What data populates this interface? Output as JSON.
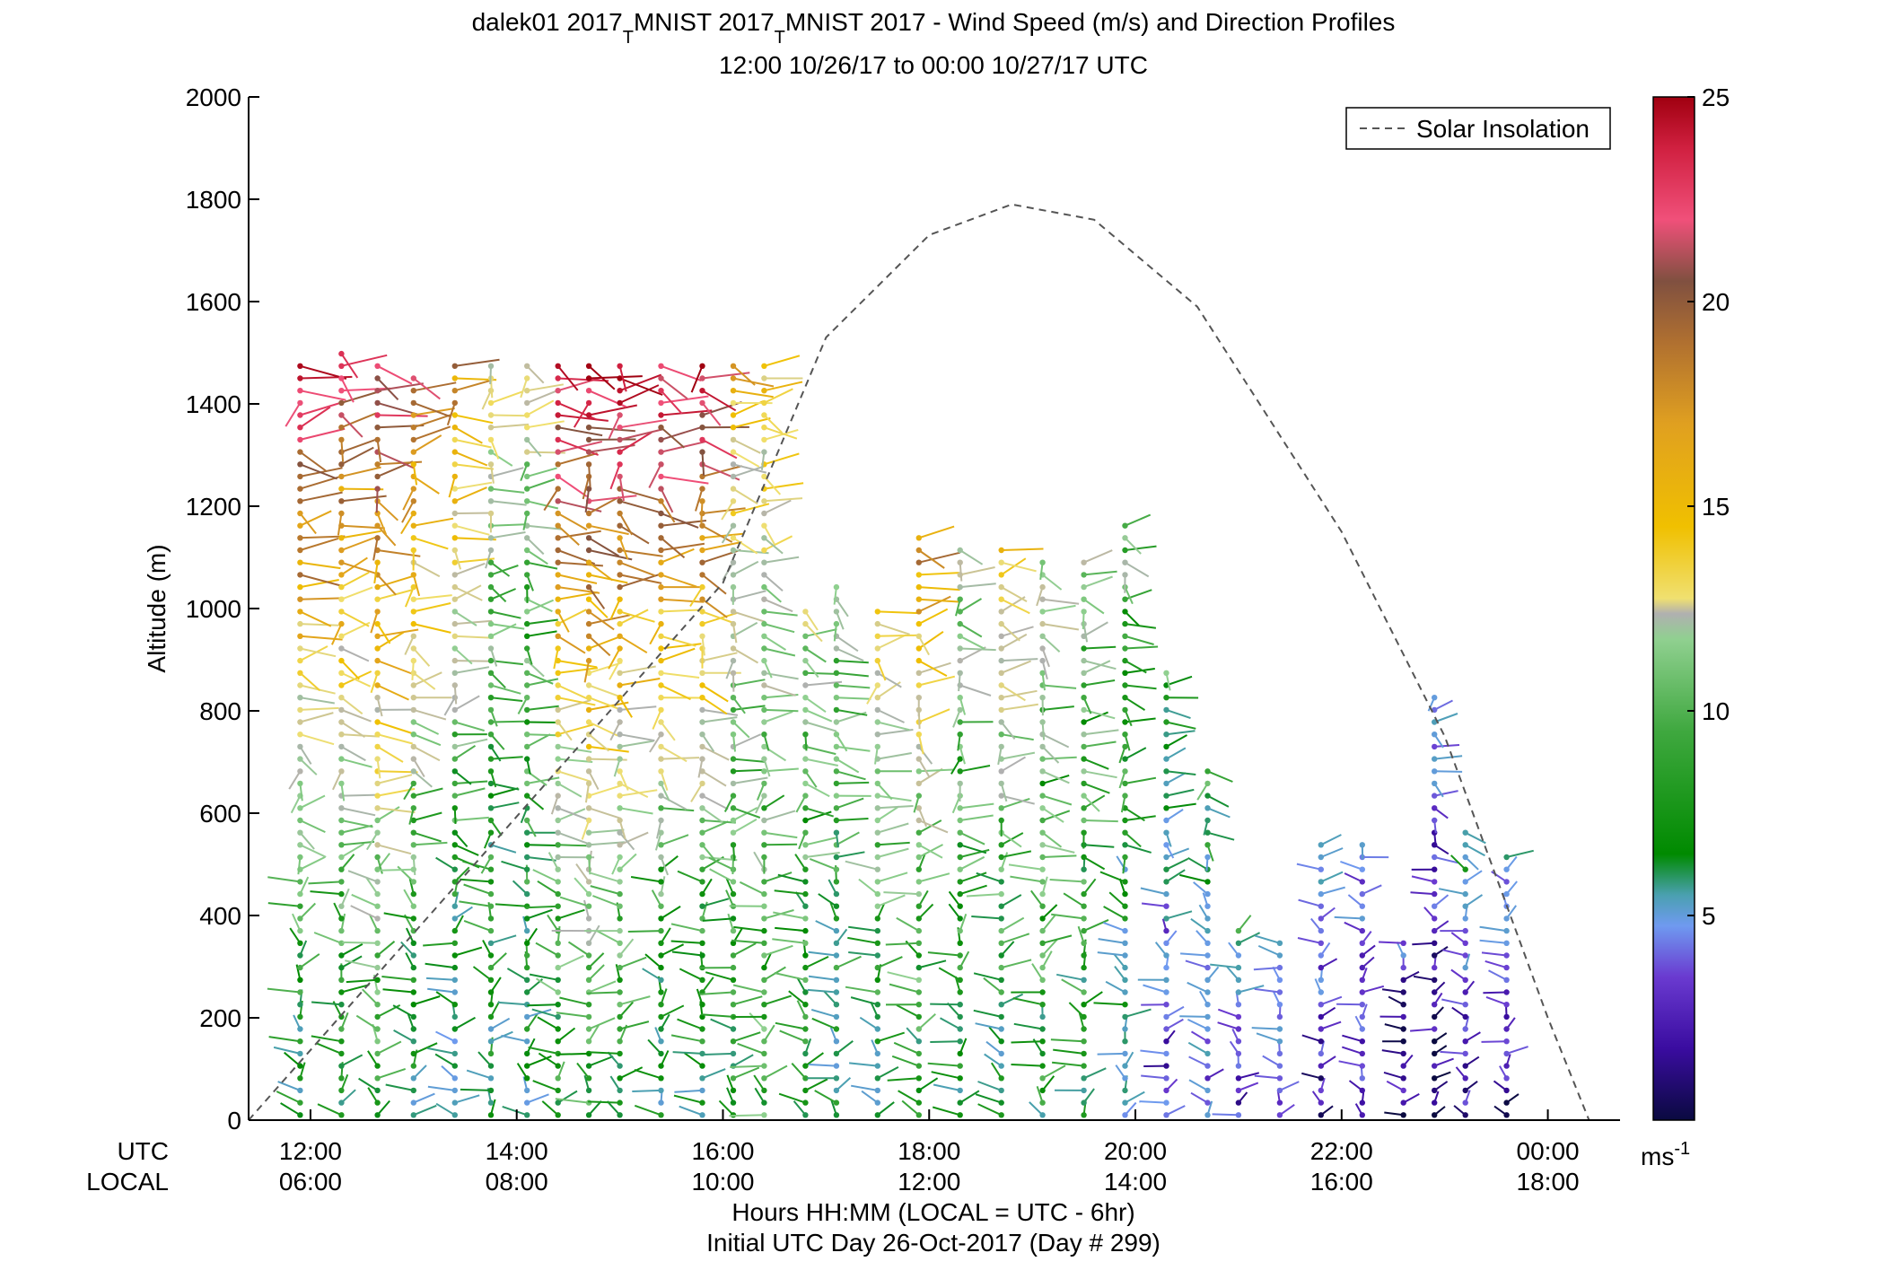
{
  "chart_data": {
    "type": "scatter",
    "title_line1_prefix": "dalek01 2017",
    "title_sub1": "T",
    "title_mid": "MNIST 2017",
    "title_sub2": "T",
    "title_suffix": "MNIST 2017 - Wind Speed (m/s) and Direction Profiles",
    "subtitle": "12:00 10/26/17 to 00:00 10/27/17  UTC",
    "ylabel": "Altitude (m)",
    "xlabel_line1": "Hours HH:MM  (LOCAL = UTC - 6hr)",
    "xlabel_line2": "Initial UTC Day 26-Oct-2017 (Day # 299)",
    "x_row_labels": [
      "UTC",
      "LOCAL"
    ],
    "ylim": [
      0,
      2000
    ],
    "y_ticks": [
      "0",
      "200",
      "400",
      "600",
      "800",
      "1000",
      "1200",
      "1400",
      "1600",
      "1800",
      "2000"
    ],
    "xlim_hours": [
      11.4,
      24.7
    ],
    "x_ticks_hours": [
      12,
      14,
      16,
      18,
      20,
      22,
      24
    ],
    "x_ticks_utc": [
      "12:00",
      "14:00",
      "16:00",
      "18:00",
      "20:00",
      "22:00",
      "00:00"
    ],
    "x_ticks_local": [
      "06:00",
      "08:00",
      "10:00",
      "12:00",
      "14:00",
      "16:00",
      "18:00"
    ],
    "legend": {
      "label": "Solar Insolation",
      "position": "top-right"
    },
    "colorbar": {
      "range": [
        0,
        25
      ],
      "ticks": [
        "5",
        "10",
        "15",
        "20",
        "25"
      ],
      "unit_base": "ms",
      "unit_exp": "-1",
      "colors": [
        "#0a0a40",
        "#3a0ca0",
        "#6a3ad0",
        "#6f9af0",
        "#4aa0b0",
        "#008a00",
        "#3fa83f",
        "#90d090",
        "#b0b0b0",
        "#f0e070",
        "#f0c000",
        "#e0a020",
        "#b07030",
        "#805040",
        "#f0507a",
        "#d02040",
        "#a00010"
      ]
    },
    "solar_insolation_curve": {
      "x": [
        11.4,
        16.0,
        17.0,
        18.0,
        18.8,
        19.6,
        20.6,
        22.0,
        23.0,
        24.0,
        24.4
      ],
      "y": [
        0,
        1050,
        1530,
        1730,
        1790,
        1760,
        1590,
        1150,
        750,
        200,
        0
      ]
    },
    "profiles": [
      {
        "t": 11.9,
        "top": 1480,
        "speed_lo": 7,
        "speed_hi": 24
      },
      {
        "t": 12.3,
        "top": 1510,
        "speed_lo": 8,
        "speed_hi": 22
      },
      {
        "t": 12.65,
        "top": 1490,
        "speed_lo": 9,
        "speed_hi": 23
      },
      {
        "t": 13.0,
        "top": 1450,
        "speed_lo": 7,
        "speed_hi": 20
      },
      {
        "t": 13.4,
        "top": 1480,
        "speed_lo": 6,
        "speed_hi": 18
      },
      {
        "t": 13.75,
        "top": 1490,
        "speed_lo": 7,
        "speed_hi": 14
      },
      {
        "t": 14.1,
        "top": 1490,
        "speed_lo": 7,
        "speed_hi": 13
      },
      {
        "t": 14.4,
        "top": 1490,
        "speed_lo": 8,
        "speed_hi": 24
      },
      {
        "t": 14.7,
        "top": 1480,
        "speed_lo": 9,
        "speed_hi": 24
      },
      {
        "t": 15.0,
        "top": 1490,
        "speed_lo": 8,
        "speed_hi": 25
      },
      {
        "t": 15.4,
        "top": 1490,
        "speed_lo": 7,
        "speed_hi": 24
      },
      {
        "t": 15.8,
        "top": 1490,
        "speed_lo": 7,
        "speed_hi": 24
      },
      {
        "t": 16.1,
        "top": 1490,
        "speed_lo": 8,
        "speed_hi": 16
      },
      {
        "t": 16.4,
        "top": 1490,
        "speed_lo": 9,
        "speed_hi": 15
      },
      {
        "t": 16.8,
        "top": 1000,
        "speed_lo": 8,
        "speed_hi": 12
      },
      {
        "t": 17.1,
        "top": 1060,
        "speed_lo": 7,
        "speed_hi": 12
      },
      {
        "t": 17.5,
        "top": 1010,
        "speed_lo": 7,
        "speed_hi": 16
      },
      {
        "t": 17.9,
        "top": 1140,
        "speed_lo": 8,
        "speed_hi": 18
      },
      {
        "t": 18.3,
        "top": 1130,
        "speed_lo": 8,
        "speed_hi": 12
      },
      {
        "t": 18.7,
        "top": 1130,
        "speed_lo": 7,
        "speed_hi": 16
      },
      {
        "t": 19.1,
        "top": 1110,
        "speed_lo": 8,
        "speed_hi": 12
      },
      {
        "t": 19.5,
        "top": 1100,
        "speed_lo": 8,
        "speed_hi": 11
      },
      {
        "t": 19.9,
        "top": 1170,
        "speed_lo": 6,
        "speed_hi": 11
      },
      {
        "t": 20.3,
        "top": 880,
        "speed_lo": 3,
        "speed_hi": 9
      },
      {
        "t": 20.7,
        "top": 700,
        "speed_lo": 4,
        "speed_hi": 9
      },
      {
        "t": 21.0,
        "top": 380,
        "speed_lo": 3,
        "speed_hi": 8
      },
      {
        "t": 21.4,
        "top": 350,
        "speed_lo": 3,
        "speed_hi": 6
      },
      {
        "t": 21.8,
        "top": 560,
        "speed_lo": 2,
        "speed_hi": 6
      },
      {
        "t": 22.2,
        "top": 560,
        "speed_lo": 2,
        "speed_hi": 5
      },
      {
        "t": 22.6,
        "top": 360,
        "speed_lo": 1,
        "speed_hi": 4
      },
      {
        "t": 22.9,
        "top": 830,
        "speed_lo": 1,
        "speed_hi": 5
      },
      {
        "t": 23.2,
        "top": 580,
        "speed_lo": 2,
        "speed_hi": 8
      },
      {
        "t": 23.6,
        "top": 520,
        "speed_lo": 2,
        "speed_hi": 6
      }
    ]
  }
}
